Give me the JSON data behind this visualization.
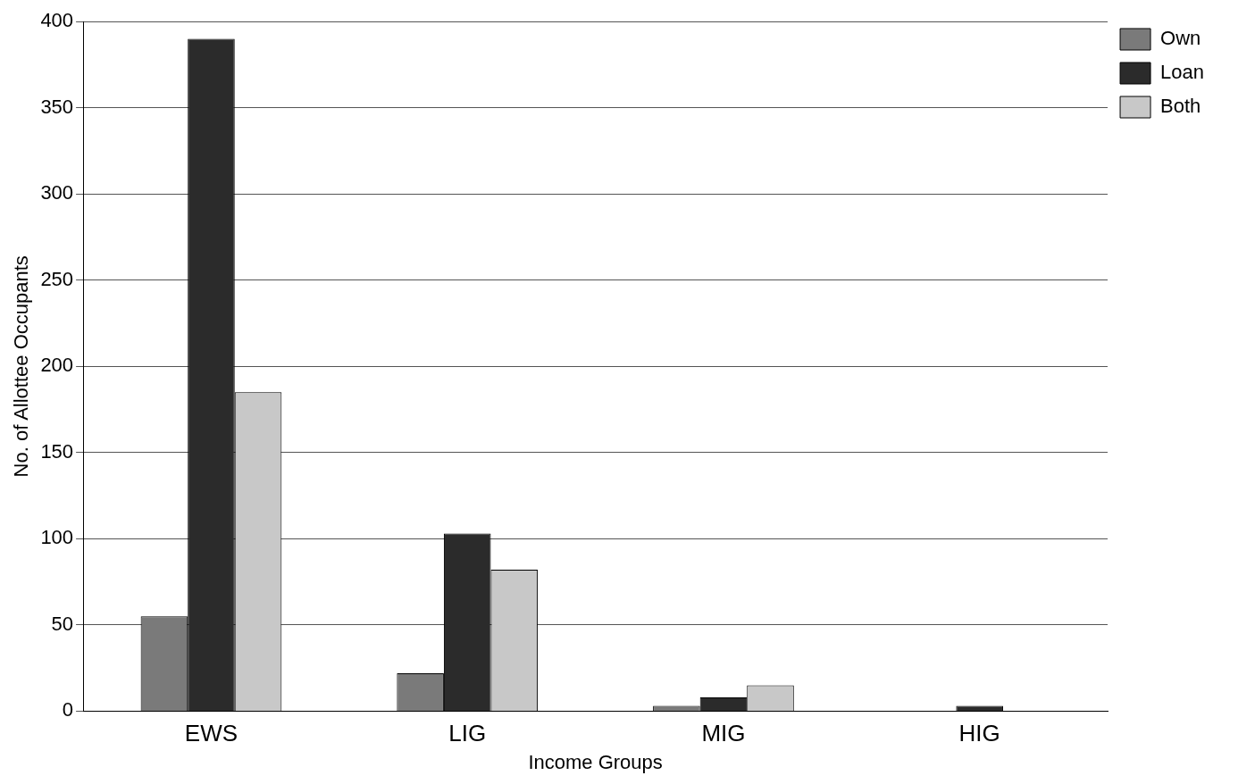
{
  "chart_data": {
    "type": "bar",
    "xlabel": "Income Groups",
    "ylabel": "No. of Allottee Occupants",
    "categories": [
      "EWS",
      "LIG",
      "MIG",
      "HIG"
    ],
    "series": [
      {
        "name": "Own",
        "color": "#7a7a7a",
        "values": [
          55,
          22,
          3,
          0
        ]
      },
      {
        "name": "Loan",
        "color": "#2b2b2b",
        "values": [
          390,
          103,
          8,
          3
        ]
      },
      {
        "name": "Both",
        "color": "#c8c8c8",
        "values": [
          185,
          82,
          15,
          0
        ]
      }
    ],
    "ylim": [
      0,
      400
    ],
    "yticks": [
      0,
      50,
      100,
      150,
      200,
      250,
      300,
      350,
      400
    ],
    "grid": "y",
    "legend": "top right"
  }
}
